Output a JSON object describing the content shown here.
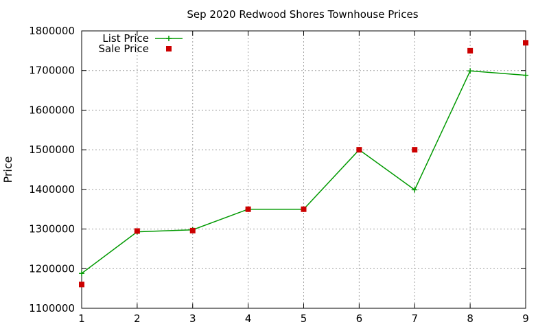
{
  "chart_data": {
    "type": "line",
    "title": "Sep 2020 Redwood Shores Townhouse Prices",
    "xlabel": "",
    "ylabel": "Price",
    "x": [
      1,
      2,
      3,
      4,
      5,
      6,
      7,
      8,
      9
    ],
    "xlim": [
      1,
      9
    ],
    "ylim": [
      1100000,
      1800000
    ],
    "x_ticks": [
      1,
      2,
      3,
      4,
      5,
      6,
      7,
      8,
      9
    ],
    "y_ticks": [
      1100000,
      1200000,
      1300000,
      1400000,
      1500000,
      1600000,
      1700000,
      1800000
    ],
    "grid": true,
    "legend_position": "top-left",
    "series": [
      {
        "name": "List Price",
        "style": "line-with-plus-markers",
        "color": "#009900",
        "values": [
          1188000,
          1293000,
          1298000,
          1350000,
          1350000,
          1500000,
          1399000,
          1699000,
          1688000
        ]
      },
      {
        "name": "Sale Price",
        "style": "square-markers",
        "color": "#cc0000",
        "values": [
          1160000,
          1295000,
          1296000,
          1350000,
          1350000,
          1500000,
          1500000,
          1750000,
          1770000
        ]
      }
    ]
  }
}
